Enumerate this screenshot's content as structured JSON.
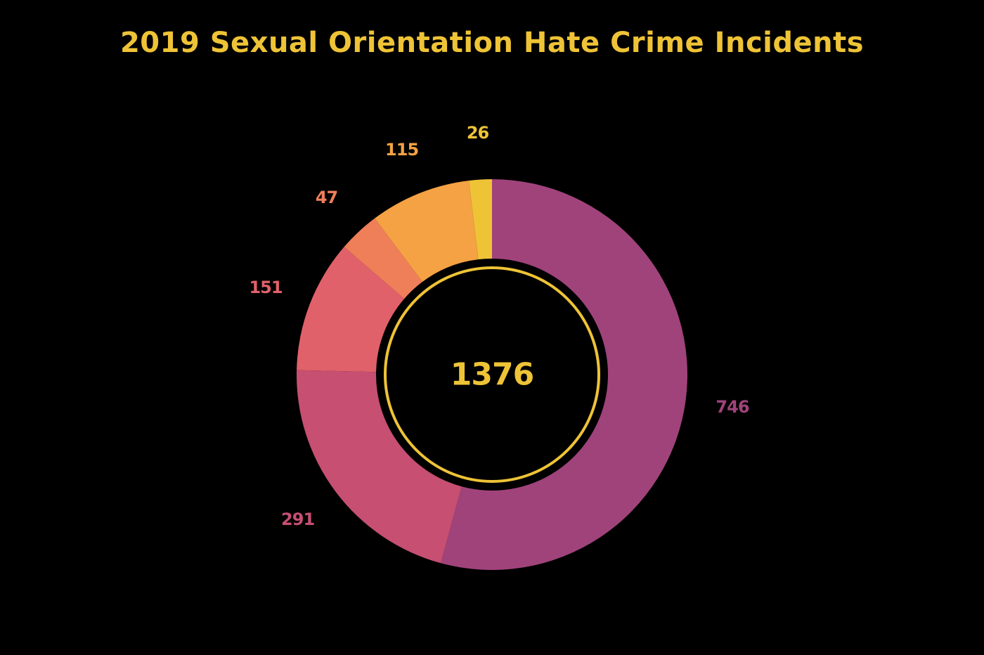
{
  "chart_data": {
    "type": "pie",
    "variant": "donut",
    "title": "2019 Sexual Orientation Hate Crime Incidents",
    "center_label": "1376",
    "total": 1376,
    "start_angle_deg": 0,
    "direction": "clockwise",
    "slices": [
      {
        "label": "746",
        "value": 746,
        "color": "#A0437B"
      },
      {
        "label": "291",
        "value": 291,
        "color": "#C64F72"
      },
      {
        "label": "151",
        "value": 151,
        "color": "#E1616A"
      },
      {
        "label": "47",
        "value": 47,
        "color": "#EF7F59"
      },
      {
        "label": "115",
        "value": 115,
        "color": "#F5A244"
      },
      {
        "label": "26",
        "value": 26,
        "color": "#EEC336"
      }
    ],
    "legend": "none"
  },
  "colors": {
    "background": "#000000",
    "accent": "#EEC336"
  }
}
